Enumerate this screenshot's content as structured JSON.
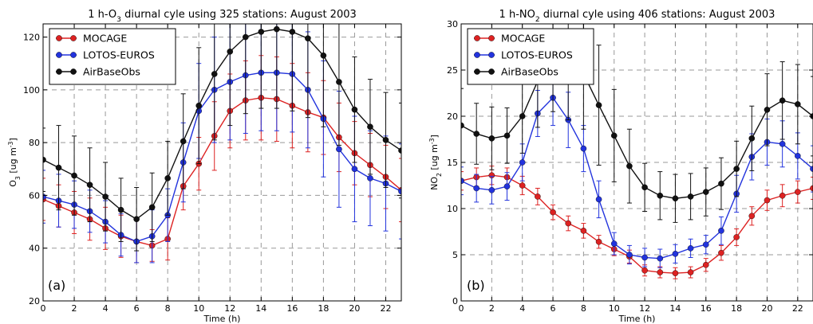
{
  "chart_data": [
    {
      "type": "line",
      "title_parts": [
        "1 h-O",
        "3",
        " diurnal cyle using 325 stations: August 2003"
      ],
      "xlabel": "Time (h)",
      "ylabel_parts": [
        "O",
        "3",
        " [ug m",
        "-3",
        "]"
      ],
      "panel_label": "(a)",
      "xlim": [
        0,
        23
      ],
      "ylim": [
        20,
        125
      ],
      "xticks": [
        0,
        2,
        4,
        6,
        8,
        10,
        12,
        14,
        16,
        18,
        20,
        22
      ],
      "yticks": [
        20,
        40,
        60,
        80,
        100,
        120
      ],
      "grid": true,
      "legend_position": "top-left",
      "x": [
        0,
        1,
        2,
        3,
        4,
        5,
        6,
        7,
        8,
        9,
        10,
        11,
        12,
        13,
        14,
        15,
        16,
        17,
        18,
        19,
        20,
        21,
        22,
        23
      ],
      "series": [
        {
          "name": "MOCAGE",
          "color": "#dd2222",
          "values": [
            58.5,
            56,
            53.5,
            51,
            47.5,
            44.5,
            42.5,
            41,
            43.5,
            63.5,
            72,
            82.5,
            92,
            96,
            97,
            96.5,
            94,
            91.5,
            89.5,
            82,
            76,
            71.5,
            67,
            62
          ],
          "errors": [
            8,
            8,
            8,
            8,
            8,
            8,
            8,
            6,
            8,
            9,
            10,
            13,
            14,
            15,
            16,
            16,
            16,
            15,
            14,
            13,
            12,
            12,
            12,
            12
          ]
        },
        {
          "name": "LOTOS-EUROS",
          "color": "#2233dd",
          "values": [
            59.5,
            58,
            56.5,
            54,
            50,
            45,
            42.5,
            44.5,
            52.5,
            72.5,
            92,
            100,
            103,
            105.5,
            106.5,
            106.5,
            106,
            100,
            89,
            77.5,
            70,
            66.5,
            64.5,
            61.5
          ],
          "errors": [
            10,
            10,
            9,
            8,
            8,
            8,
            8,
            10,
            10,
            15,
            18,
            20,
            22,
            22,
            22,
            22,
            22,
            22,
            22,
            22,
            20,
            18,
            18,
            18
          ]
        },
        {
          "name": "AirBaseObs",
          "color": "#111111",
          "values": [
            73.5,
            70.5,
            67.5,
            64,
            59.5,
            54.5,
            51,
            55.5,
            66.5,
            80.5,
            94,
            106,
            114.5,
            120,
            122,
            123,
            122,
            119.5,
            113,
            103,
            92.5,
            86,
            81,
            77
          ],
          "errors": [
            12,
            16,
            15,
            14,
            13,
            12,
            12,
            13,
            14,
            18,
            22,
            25,
            28,
            29,
            29,
            30,
            30,
            30,
            27,
            24,
            20,
            18,
            18,
            18
          ]
        }
      ]
    },
    {
      "type": "line",
      "title_parts": [
        "1 h-NO",
        "2",
        " diurnal cyle using 406 stations: August 2003"
      ],
      "xlabel": "Time (h)",
      "ylabel_parts": [
        "NO",
        "2",
        " [ug m",
        "-3",
        "]"
      ],
      "panel_label": "(b)",
      "xlim": [
        0,
        23
      ],
      "ylim": [
        0,
        30
      ],
      "xticks": [
        0,
        2,
        4,
        6,
        8,
        10,
        12,
        14,
        16,
        18,
        20,
        22
      ],
      "yticks": [
        0,
        5,
        10,
        15,
        20,
        25,
        30
      ],
      "grid": true,
      "legend_position": "top-left",
      "x": [
        0,
        1,
        2,
        3,
        4,
        5,
        6,
        7,
        8,
        9,
        10,
        11,
        12,
        13,
        14,
        15,
        16,
        17,
        18,
        19,
        20,
        21,
        22,
        23
      ],
      "series": [
        {
          "name": "MOCAGE",
          "color": "#dd2222",
          "values": [
            13,
            13.4,
            13.6,
            13.4,
            12.5,
            11.3,
            9.6,
            8.4,
            7.6,
            6.4,
            5.6,
            4.8,
            3.3,
            3.1,
            3.0,
            3.1,
            3.9,
            5.2,
            6.9,
            9.2,
            10.9,
            11.4,
            11.8,
            12.2
          ],
          "errors": [
            1.0,
            1.0,
            1.0,
            1.0,
            1.0,
            0.9,
            0.8,
            0.8,
            0.8,
            0.7,
            0.7,
            0.7,
            0.6,
            0.6,
            0.6,
            0.6,
            0.7,
            0.8,
            0.9,
            1.0,
            1.1,
            1.2,
            1.2,
            1.2
          ]
        },
        {
          "name": "LOTOS-EUROS",
          "color": "#2233dd",
          "values": [
            13,
            12.2,
            12.0,
            12.4,
            15.0,
            20.3,
            22.0,
            19.6,
            16.5,
            11.0,
            6.2,
            5.0,
            4.7,
            4.6,
            5.1,
            5.7,
            6.1,
            7.6,
            11.6,
            15.6,
            17.2,
            17.0,
            15.7,
            14.3
          ],
          "errors": [
            1.5,
            1.5,
            1.5,
            1.5,
            2.0,
            2.5,
            3.0,
            3.0,
            2.5,
            2.0,
            1.2,
            1.0,
            1.0,
            1.0,
            1.0,
            1.0,
            1.0,
            1.5,
            2.0,
            2.5,
            2.5,
            2.5,
            2.5,
            2.5
          ]
        },
        {
          "name": "AirBaseObs",
          "color": "#111111",
          "values": [
            19,
            18.1,
            17.6,
            17.9,
            20.0,
            23.8,
            26.0,
            25.4,
            24.6,
            21.2,
            17.9,
            14.6,
            12.3,
            11.4,
            11.1,
            11.3,
            11.8,
            12.7,
            14.3,
            17.6,
            20.7,
            21.7,
            21.3,
            20.0
          ],
          "errors": [
            4.0,
            3.3,
            3.4,
            3.0,
            4.0,
            5.0,
            5.5,
            5.8,
            6.0,
            6.5,
            5.0,
            4.0,
            2.6,
            2.6,
            2.6,
            2.5,
            2.6,
            2.8,
            3.0,
            3.5,
            3.9,
            4.2,
            4.3,
            4.3
          ]
        }
      ]
    }
  ]
}
